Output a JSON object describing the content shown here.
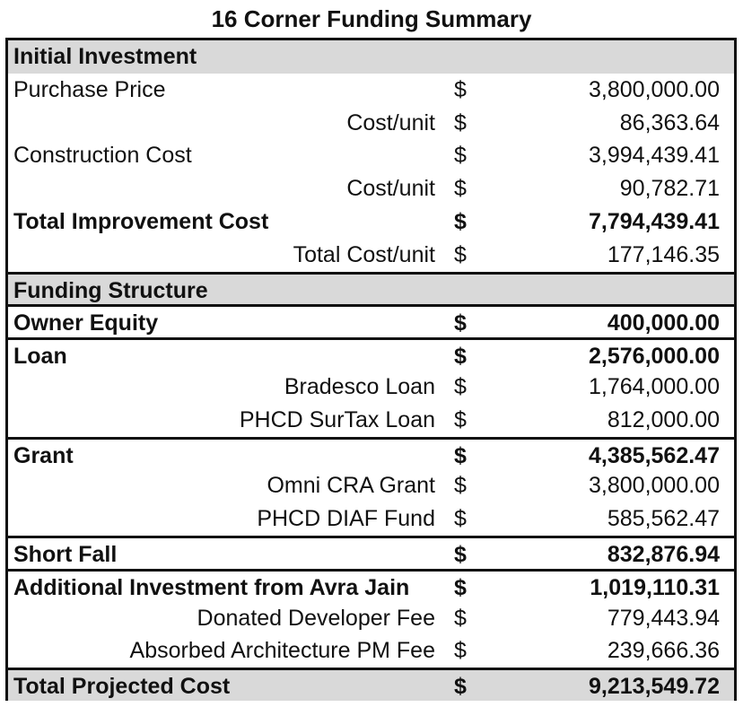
{
  "title": "16 Corner Funding Summary",
  "rows": [
    {
      "label": "Initial Investment",
      "dollar": "",
      "amount": ""
    },
    {
      "label": "Purchase Price",
      "dollar": "$",
      "amount": "3,800,000.00"
    },
    {
      "label": "Cost/unit",
      "dollar": "$",
      "amount": "86,363.64"
    },
    {
      "label": "Construction Cost",
      "dollar": "$",
      "amount": "3,994,439.41"
    },
    {
      "label": "Cost/unit",
      "dollar": "$",
      "amount": "90,782.71"
    },
    {
      "label": "Total Improvement Cost",
      "dollar": "$",
      "amount": "7,794,439.41"
    },
    {
      "label": "Total Cost/unit",
      "dollar": "$",
      "amount": "177,146.35"
    },
    {
      "label": "Funding Structure",
      "dollar": "",
      "amount": ""
    },
    {
      "label": "Owner Equity",
      "dollar": "$",
      "amount": "400,000.00"
    },
    {
      "label": "Loan",
      "dollar": "$",
      "amount": "2,576,000.00"
    },
    {
      "label": "Bradesco Loan",
      "dollar": "$",
      "amount": "1,764,000.00"
    },
    {
      "label": "PHCD SurTax Loan",
      "dollar": "$",
      "amount": "812,000.00"
    },
    {
      "label": "Grant",
      "dollar": "$",
      "amount": "4,385,562.47"
    },
    {
      "label": "Omni CRA Grant",
      "dollar": "$",
      "amount": "3,800,000.00"
    },
    {
      "label": "PHCD DIAF Fund",
      "dollar": "$",
      "amount": "585,562.47"
    },
    {
      "label": "Short Fall",
      "dollar": "$",
      "amount": "832,876.94"
    },
    {
      "label": "Additional Investment from Avra Jain",
      "dollar": "$",
      "amount": "1,019,110.31"
    },
    {
      "label": "Donated Developer Fee",
      "dollar": "$",
      "amount": "779,443.94"
    },
    {
      "label": "Absorbed Architecture PM Fee",
      "dollar": "$",
      "amount": "239,666.36"
    },
    {
      "label": "Total Projected Cost",
      "dollar": "$",
      "amount": "9,213,549.72"
    }
  ],
  "colors": {
    "section_fill": "#d9d9d9",
    "border": "#111111"
  }
}
